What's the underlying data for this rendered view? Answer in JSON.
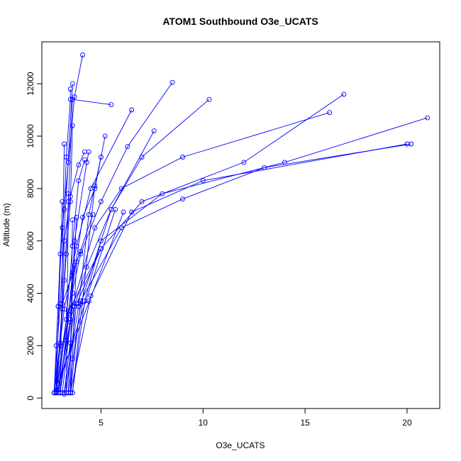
{
  "chart_data": {
    "type": "line",
    "title": "ATOM1 Southbound O3e_UCATS",
    "xlabel": "O3e_UCATS",
    "ylabel": "Altitude (m)",
    "xlim": [
      2.1,
      21.6
    ],
    "ylim": [
      -400,
      13600
    ],
    "xticks": [
      5,
      10,
      15,
      20
    ],
    "yticks": [
      0,
      2000,
      4000,
      6000,
      8000,
      10000,
      12000
    ],
    "series_color": "#0000FF",
    "markers": "open-circle",
    "grid": false,
    "profiles": [
      {
        "x": [
          2.8,
          2.8,
          2.9,
          3.0,
          3.2,
          3.3,
          3.5,
          3.5
        ],
        "y": [
          200,
          2000,
          3500,
          5500,
          7200,
          9200,
          11400,
          11800
        ]
      },
      {
        "x": [
          2.7,
          2.9,
          3.1,
          3.4,
          3.7,
          4.1
        ],
        "y": [
          200,
          3500,
          6500,
          9000,
          11500,
          13100
        ]
      },
      {
        "x": [
          2.8,
          3.0,
          3.2,
          3.4,
          3.6,
          5.5
        ],
        "y": [
          250,
          2000,
          4500,
          7500,
          11400,
          11200
        ]
      },
      {
        "x": [
          2.7,
          3.2,
          3.8,
          4.5,
          6.5
        ],
        "y": [
          200,
          3400,
          5800,
          8000,
          11000
        ]
      },
      {
        "x": [
          2.8,
          3.3,
          4.0,
          5.0,
          6.3,
          8.5
        ],
        "y": [
          300,
          3000,
          5500,
          7500,
          9600,
          12050
        ]
      },
      {
        "x": [
          2.9,
          3.5,
          4.3,
          5.5,
          7.0,
          10.3
        ],
        "y": [
          200,
          3000,
          5000,
          7200,
          9200,
          11400
        ]
      },
      {
        "x": [
          3.0,
          3.6,
          4.7,
          6.0,
          9.0,
          16.2
        ],
        "y": [
          200,
          3500,
          6500,
          8000,
          9200,
          10900
        ]
      },
      {
        "x": [
          3.3,
          3.8,
          5.0,
          7.0,
          12.0,
          16.9
        ],
        "y": [
          200,
          3600,
          5700,
          7500,
          9000,
          11600
        ]
      },
      {
        "x": [
          3.5,
          4.0,
          6.0,
          9.0,
          13.0,
          20.2
        ],
        "y": [
          200,
          3700,
          6500,
          7600,
          8800,
          9700
        ]
      },
      {
        "x": [
          3.6,
          4.2,
          5.0,
          8.0,
          14.0,
          21.0
        ],
        "y": [
          200,
          3700,
          6000,
          7800,
          9000,
          10700
        ]
      },
      {
        "x": [
          3.5,
          4.5,
          6.5,
          10.0,
          20.0
        ],
        "y": [
          200,
          3900,
          7100,
          8300,
          9700
        ]
      },
      {
        "x": [
          3.4,
          4.0,
          5.5,
          7.6
        ],
        "y": [
          200,
          3600,
          7200,
          10200
        ]
      },
      {
        "x": [
          3.2,
          3.9,
          4.4,
          5.0
        ],
        "y": [
          150,
          3500,
          7000,
          9200
        ]
      },
      {
        "x": [
          2.8,
          3.4,
          4.1,
          4.7,
          5.2
        ],
        "y": [
          200,
          3200,
          6900,
          8000,
          10000
        ]
      },
      {
        "x": [
          2.9,
          3.3,
          3.6,
          3.9,
          4.2
        ],
        "y": [
          300,
          3000,
          5800,
          8300,
          9100
        ]
      },
      {
        "x": [
          3.1,
          3.5,
          3.7,
          4.3,
          4.4
        ],
        "y": [
          200,
          2900,
          6000,
          9000,
          9400
        ]
      },
      {
        "x": [
          2.7,
          3.0,
          3.3,
          3.5,
          3.6
        ],
        "y": [
          200,
          2100,
          5500,
          7500,
          10400
        ]
      },
      {
        "x": [
          2.8,
          3.1,
          3.2,
          3.5,
          3.9,
          4.2
        ],
        "y": [
          200,
          3400,
          6000,
          7700,
          8900,
          9400
        ]
      },
      {
        "x": [
          3.5,
          3.6,
          3.7,
          3.8
        ],
        "y": [
          200,
          1500,
          3500,
          5200
        ]
      },
      {
        "x": [
          3.4,
          3.5,
          3.6,
          3.8
        ],
        "y": [
          200,
          2100,
          4000,
          6900
        ]
      },
      {
        "x": [
          2.7,
          3.0,
          3.6
        ],
        "y": [
          200,
          3600,
          12000
        ]
      },
      {
        "x": [
          2.8,
          3.1,
          4.6
        ],
        "y": [
          200,
          3600,
          7000
        ]
      },
      {
        "x": [
          3.0,
          3.4,
          5.0
        ],
        "y": [
          200,
          3300,
          5700
        ]
      },
      {
        "x": [
          3.2,
          3.7,
          4.4
        ],
        "y": [
          200,
          3500,
          3700
        ]
      },
      {
        "x": [
          2.9,
          3.3,
          3.6,
          4.0
        ],
        "y": [
          200,
          2200,
          4800,
          5600
        ]
      },
      {
        "x": [
          2.8,
          3.1
        ],
        "y": [
          200,
          7500
        ]
      },
      {
        "x": [
          3.0,
          3.2
        ],
        "y": [
          200,
          9700
        ]
      },
      {
        "x": [
          3.3,
          3.4
        ],
        "y": [
          200,
          7800
        ]
      },
      {
        "x": [
          3.5,
          3.6
        ],
        "y": [
          200,
          6800
        ]
      },
      {
        "x": [
          2.7,
          6.1
        ],
        "y": [
          200,
          7100
        ]
      },
      {
        "x": [
          2.8,
          5.7
        ],
        "y": [
          200,
          7200
        ]
      },
      {
        "x": [
          3.6,
          4.7
        ],
        "y": [
          200,
          8100
        ]
      }
    ]
  }
}
